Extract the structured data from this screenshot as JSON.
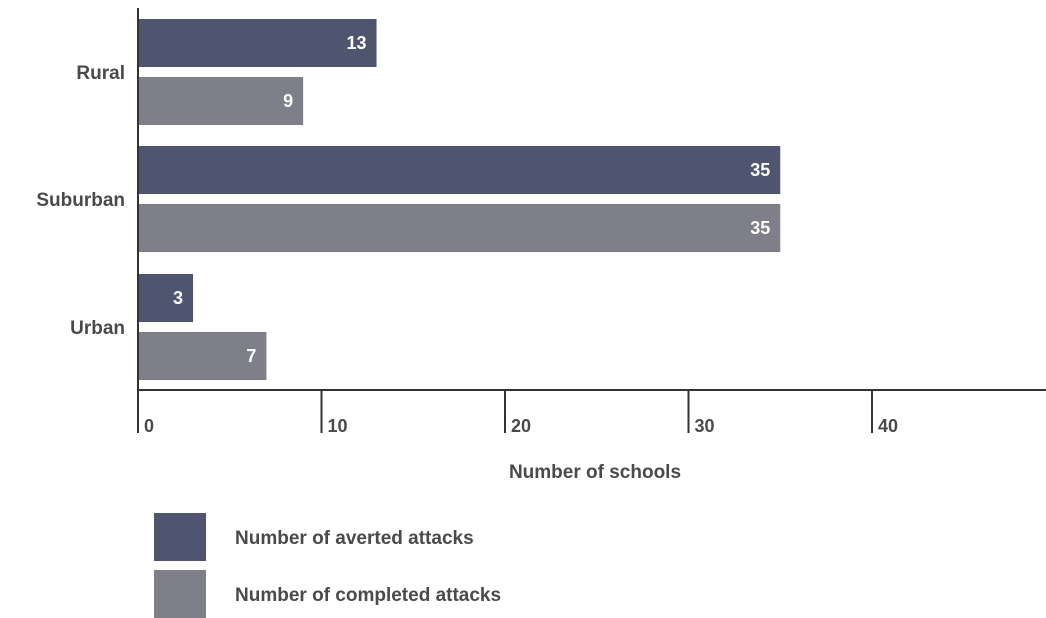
{
  "chart_data": {
    "type": "bar",
    "orientation": "horizontal",
    "categories": [
      "Rural",
      "Suburban",
      "Urban"
    ],
    "series": [
      {
        "name": "Number of averted attacks",
        "values": [
          13,
          35,
          3
        ],
        "color": "#50556f"
      },
      {
        "name": "Number of completed attacks",
        "values": [
          9,
          35,
          7
        ],
        "color": "#7e7f88"
      }
    ],
    "data_labels": [
      [
        "13",
        "35",
        "3"
      ],
      [
        "9",
        "35",
        "7"
      ]
    ],
    "xlabel": "Number of schools",
    "ylabel": "",
    "xticks": [
      "0",
      "10",
      "20",
      "30",
      "40"
    ],
    "xlim": [
      0,
      49.5
    ],
    "grid": false,
    "legend": "bottom-left"
  }
}
